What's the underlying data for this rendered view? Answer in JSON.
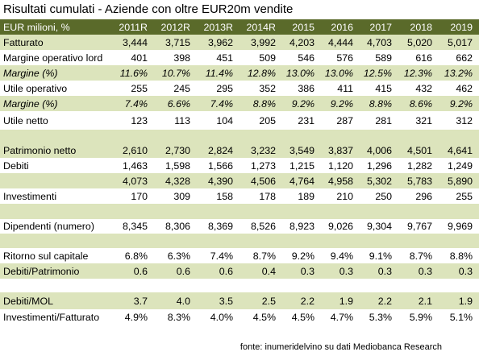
{
  "title": "Risultati cumulati - Aziende con oltre EUR20m vendite",
  "table": {
    "unit_label": "EUR milioni, %",
    "columns": [
      "2011R",
      "2012R",
      "2013R",
      "2014R",
      "2015",
      "2016",
      "2017",
      "2018",
      "2019"
    ],
    "rows": [
      {
        "label": "Fatturato",
        "values": [
          "3,444",
          "3,715",
          "3,962",
          "3,992",
          "4,203",
          "4,444",
          "4,703",
          "5,020",
          "5,017"
        ]
      },
      {
        "label": "Margine operativo lord",
        "values": [
          "401",
          "398",
          "451",
          "509",
          "546",
          "576",
          "589",
          "616",
          "662"
        ]
      },
      {
        "label": "Margine (%)",
        "values": [
          "11.6%",
          "10.7%",
          "11.4%",
          "12.8%",
          "13.0%",
          "13.0%",
          "12.5%",
          "12.3%",
          "13.2%"
        ]
      },
      {
        "label": "Utile operativo",
        "values": [
          "255",
          "245",
          "295",
          "352",
          "386",
          "411",
          "415",
          "432",
          "462"
        ]
      },
      {
        "label": "Margine (%)",
        "values": [
          "7.4%",
          "6.6%",
          "7.4%",
          "8.8%",
          "9.2%",
          "9.2%",
          "8.8%",
          "8.6%",
          "9.2%"
        ]
      },
      {
        "label": "Utile netto",
        "values": [
          "123",
          "113",
          "104",
          "205",
          "231",
          "287",
          "281",
          "321",
          "312"
        ]
      },
      {
        "label": "",
        "values": [
          "",
          "",
          "",
          "",
          "",
          "",
          "",
          "",
          ""
        ]
      },
      {
        "label": "Patrimonio netto",
        "values": [
          "2,610",
          "2,730",
          "2,824",
          "3,232",
          "3,549",
          "3,837",
          "4,006",
          "4,501",
          "4,641"
        ]
      },
      {
        "label": "Debiti",
        "values": [
          "1,463",
          "1,598",
          "1,566",
          "1,273",
          "1,215",
          "1,120",
          "1,296",
          "1,282",
          "1,249"
        ]
      },
      {
        "label": "",
        "values": [
          "4,073",
          "4,328",
          "4,390",
          "4,506",
          "4,764",
          "4,958",
          "5,302",
          "5,783",
          "5,890"
        ]
      },
      {
        "label": "Investimenti",
        "values": [
          "170",
          "309",
          "158",
          "178",
          "189",
          "210",
          "250",
          "296",
          "255"
        ]
      },
      {
        "label": "",
        "values": [
          "",
          "",
          "",
          "",
          "",
          "",
          "",
          "",
          ""
        ]
      },
      {
        "label": "Dipendenti (numero)",
        "values": [
          "8,345",
          "8,306",
          "8,369",
          "8,526",
          "8,923",
          "9,026",
          "9,304",
          "9,767",
          "9,969"
        ]
      },
      {
        "label": "",
        "values": [
          "",
          "",
          "",
          "",
          "",
          "",
          "",
          "",
          ""
        ]
      },
      {
        "label": "Ritorno sul capitale",
        "values": [
          "6.8%",
          "6.3%",
          "7.4%",
          "8.7%",
          "9.2%",
          "9.4%",
          "9.1%",
          "8.7%",
          "8.8%"
        ]
      },
      {
        "label": "Debiti/Patrimonio",
        "values": [
          "0.6",
          "0.6",
          "0.6",
          "0.4",
          "0.3",
          "0.3",
          "0.3",
          "0.3",
          "0.3"
        ]
      },
      {
        "label": "",
        "values": [
          "",
          "",
          "",
          "",
          "",
          "",
          "",
          "",
          ""
        ]
      },
      {
        "label": "Debiti/MOL",
        "values": [
          "3.7",
          "4.0",
          "3.5",
          "2.5",
          "2.2",
          "1.9",
          "2.2",
          "2.1",
          "1.9"
        ]
      },
      {
        "label": "Investimenti/Fatturato",
        "values": [
          "4.9%",
          "8.3%",
          "4.0%",
          "4.5%",
          "4.5%",
          "4.7%",
          "5.3%",
          "5.9%",
          "5.1%"
        ]
      }
    ]
  },
  "footer": "fonte: inumeridelvino su dati Mediobanca Research",
  "colors": {
    "header": "#5a6a2a",
    "band": "#dce4bc",
    "text": "#000000",
    "header_text": "#ffffff"
  }
}
